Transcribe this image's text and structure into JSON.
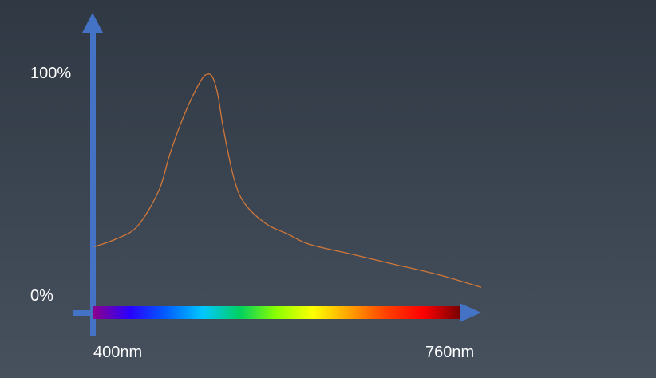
{
  "chart_data": {
    "type": "line",
    "title": "",
    "xlabel": "",
    "ylabel": "",
    "x_tick_labels": [
      "400nm",
      "760nm"
    ],
    "y_tick_labels": [
      "0%",
      "100%"
    ],
    "xlim": [
      400,
      760
    ],
    "ylim": [
      0,
      100
    ],
    "grid": false,
    "series": [
      {
        "color": "#d0773a",
        "x": [
          400,
          420,
          440,
          460,
          470,
          480,
          490,
          500,
          505,
          510,
          515,
          520,
          530,
          540,
          560,
          580,
          600,
          640,
          680,
          720,
          760
        ],
        "y": [
          20,
          23,
          28,
          42,
          56,
          68,
          78,
          86,
          88,
          87,
          80,
          67,
          47,
          37,
          29,
          25,
          21,
          17,
          13,
          9,
          4
        ]
      }
    ],
    "axis_color": "#4472c4",
    "spectrum_colors": [
      "#8b008b",
      "#2a00ff",
      "#0060ff",
      "#00c8ff",
      "#00d060",
      "#8cff00",
      "#ffff00",
      "#ffa000",
      "#ff4000",
      "#ff0000",
      "#7a0000"
    ]
  }
}
